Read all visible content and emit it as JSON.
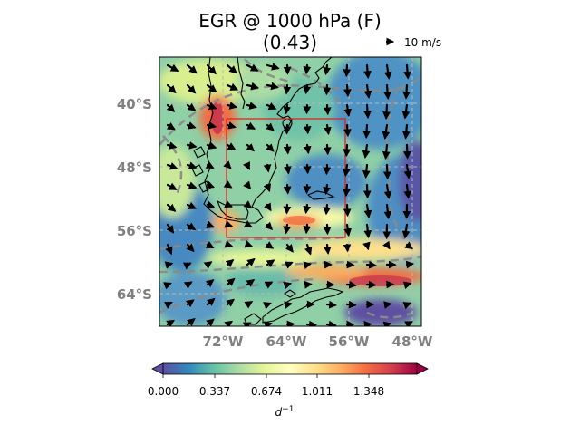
{
  "title": {
    "line1": "EGR @ 1000 hPa (F)",
    "line2": "(0.43)"
  },
  "vector_reference": {
    "label": "10 m/s",
    "magnitude_ms": 10
  },
  "map": {
    "lat_range_deg": [
      -68.5,
      -35.5
    ],
    "lon_range_deg": [
      -80,
      -47
    ],
    "lat_ticks": [
      "40°S",
      "48°S",
      "56°S",
      "64°S"
    ],
    "lon_ticks": [
      "72°W",
      "64°W",
      "56°W",
      "48°W"
    ],
    "highlight_box": {
      "lat": [
        -42,
        -57.5
      ],
      "lon": [
        -71.5,
        -56.5
      ],
      "color": "#d62728"
    }
  },
  "colorbar": {
    "ticks": [
      "0.000",
      "0.337",
      "0.674",
      "1.011",
      "1.348"
    ],
    "label": "d",
    "label_exponent": "−1",
    "range": [
      0,
      1.6
    ],
    "colormap": "Spectral_r",
    "stops": [
      "#5e4fa2",
      "#3288bd",
      "#66c2a5",
      "#abdda4",
      "#e6f598",
      "#ffffbf",
      "#fee08b",
      "#fdae61",
      "#f46d43",
      "#d53e4f",
      "#9e0142"
    ]
  }
}
